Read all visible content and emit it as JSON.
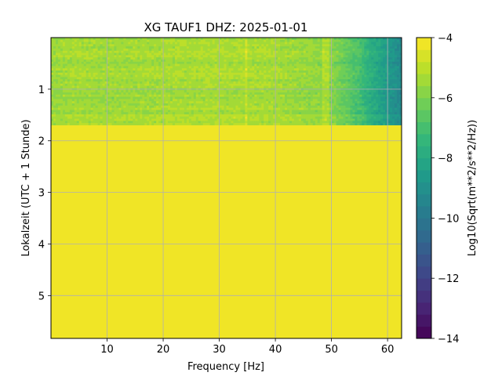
{
  "chart_data": {
    "type": "heatmap",
    "title": "XG TAUF1  DHZ: 2025-01-01",
    "xlabel": "Frequency [Hz]",
    "ylabel": "Lokalzeit (UTC + 1 Stunde)",
    "xlim": [
      0,
      62.5
    ],
    "ylim": [
      5.83,
      0
    ],
    "xticks": [
      "10",
      "20",
      "30",
      "40",
      "50",
      "60"
    ],
    "yticks": [
      "1",
      "2",
      "3",
      "4",
      "5"
    ],
    "grid": true,
    "colorbar": {
      "label": "Log10(Sqrt(m**2/s**2/Hz))",
      "range": [
        -14,
        -4
      ],
      "ticks": [
        "−14",
        "−12",
        "−10",
        "−8",
        "−6",
        "−4"
      ],
      "levels": 25,
      "colormap": "viridis"
    },
    "data_region": {
      "hours": [
        0,
        1.7
      ],
      "freq_profile": {
        "freq_hz": [
          0,
          5,
          10,
          20,
          30,
          40,
          45,
          50,
          52,
          55,
          57,
          60,
          62.5
        ],
        "log_amplitude": [
          -5.6,
          -5.4,
          -5.5,
          -5.4,
          -5.3,
          -5.4,
          -5.6,
          -5.8,
          -6.3,
          -7.0,
          -7.8,
          -8.6,
          -9.3
        ]
      },
      "line_features_hz": [
        34.8,
        48.5,
        49.3
      ]
    },
    "fill_region": {
      "hours": [
        1.7,
        5.83
      ],
      "value": -4
    }
  }
}
